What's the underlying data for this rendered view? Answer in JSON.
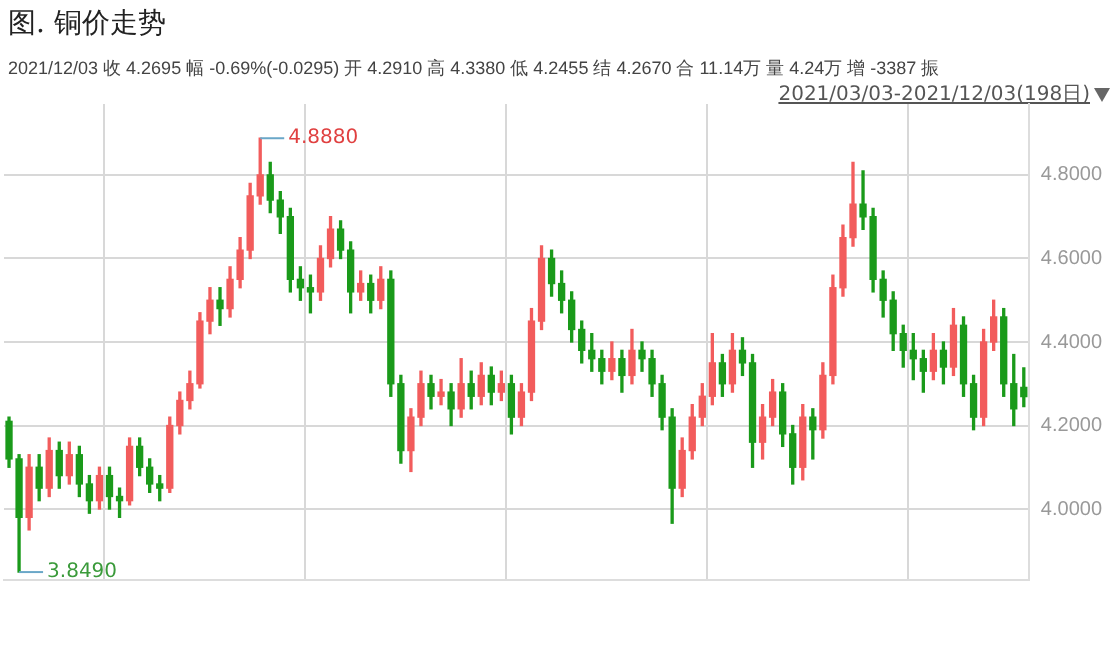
{
  "chart_data": {
    "type": "candlestick",
    "title": "图. 铜价走势",
    "annotations": [
      "2021/12/03 收 4.2695 幅 -0.69%(-0.0295) 开 4.2910 高 4.3380 低 4.2455 结 4.2670 合 11.14万 量 4.24万 增 -3387 振",
      "2021/03/03-2021/12/03(198日)",
      "4.8880",
      "3.8490"
    ],
    "categories": [
      null,
      null,
      null,
      null,
      null,
      null,
      null,
      null,
      null,
      null,
      null,
      null,
      null,
      null,
      null,
      null,
      null,
      null,
      null,
      null,
      null,
      null,
      null,
      null,
      null,
      null,
      null,
      null,
      null,
      null,
      null,
      null,
      null,
      null,
      null,
      null,
      null,
      null,
      null,
      null,
      null,
      null,
      null,
      null,
      null,
      null,
      null,
      null,
      null,
      null,
      null,
      null,
      null,
      null,
      null,
      null,
      null,
      null,
      null,
      null,
      null,
      null,
      null,
      null,
      null,
      null,
      null,
      null,
      null,
      null,
      null,
      null,
      null,
      null,
      null,
      null,
      null,
      null,
      null,
      null,
      null,
      null,
      null,
      null,
      null,
      null,
      null,
      null,
      null,
      null,
      null,
      null,
      null,
      null,
      null,
      null,
      null,
      null,
      null,
      null,
      null,
      null
    ],
    "ohlc": [
      [
        4.21,
        4.22,
        4.1,
        4.12
      ],
      [
        4.12,
        4.13,
        3.849,
        3.98
      ],
      [
        3.98,
        4.13,
        3.95,
        4.1
      ],
      [
        4.1,
        4.13,
        4.02,
        4.05
      ],
      [
        4.05,
        4.17,
        4.03,
        4.14
      ],
      [
        4.14,
        4.16,
        4.05,
        4.08
      ],
      [
        4.08,
        4.16,
        4.06,
        4.13
      ],
      [
        4.13,
        4.15,
        4.03,
        4.06
      ],
      [
        4.06,
        4.08,
        3.99,
        4.02
      ],
      [
        4.02,
        4.1,
        4.0,
        4.08
      ],
      [
        4.08,
        4.1,
        4.0,
        4.03
      ],
      [
        4.03,
        4.05,
        3.98,
        4.02
      ],
      [
        4.02,
        4.17,
        4.01,
        4.15
      ],
      [
        4.15,
        4.17,
        4.08,
        4.1
      ],
      [
        4.1,
        4.12,
        4.04,
        4.06
      ],
      [
        4.06,
        4.08,
        4.02,
        4.05
      ],
      [
        4.05,
        4.22,
        4.04,
        4.2
      ],
      [
        4.2,
        4.28,
        4.18,
        4.26
      ],
      [
        4.26,
        4.33,
        4.24,
        4.3
      ],
      [
        4.3,
        4.47,
        4.29,
        4.45
      ],
      [
        4.45,
        4.53,
        4.42,
        4.5
      ],
      [
        4.5,
        4.53,
        4.44,
        4.48
      ],
      [
        4.48,
        4.58,
        4.46,
        4.55
      ],
      [
        4.55,
        4.65,
        4.53,
        4.62
      ],
      [
        4.62,
        4.78,
        4.6,
        4.75
      ],
      [
        4.75,
        4.888,
        4.73,
        4.8
      ],
      [
        4.8,
        4.83,
        4.71,
        4.74
      ],
      [
        4.74,
        4.76,
        4.66,
        4.7
      ],
      [
        4.7,
        4.72,
        4.52,
        4.55
      ],
      [
        4.55,
        4.58,
        4.5,
        4.53
      ],
      [
        4.53,
        4.56,
        4.47,
        4.52
      ],
      [
        4.52,
        4.63,
        4.5,
        4.6
      ],
      [
        4.6,
        4.7,
        4.58,
        4.67
      ],
      [
        4.67,
        4.69,
        4.6,
        4.62
      ],
      [
        4.62,
        4.64,
        4.47,
        4.52
      ],
      [
        4.52,
        4.57,
        4.5,
        4.54
      ],
      [
        4.54,
        4.56,
        4.47,
        4.5
      ],
      [
        4.5,
        4.58,
        4.48,
        4.55
      ],
      [
        4.55,
        4.57,
        4.27,
        4.3
      ],
      [
        4.3,
        4.32,
        4.11,
        4.14
      ],
      [
        4.14,
        4.24,
        4.09,
        4.22
      ],
      [
        4.22,
        4.33,
        4.2,
        4.3
      ],
      [
        4.3,
        4.32,
        4.24,
        4.27
      ],
      [
        4.27,
        4.31,
        4.25,
        4.28
      ],
      [
        4.28,
        4.3,
        4.2,
        4.24
      ],
      [
        4.24,
        4.36,
        4.22,
        4.3
      ],
      [
        4.3,
        4.33,
        4.24,
        4.27
      ],
      [
        4.27,
        4.35,
        4.25,
        4.32
      ],
      [
        4.32,
        4.34,
        4.25,
        4.28
      ],
      [
        4.28,
        4.33,
        4.26,
        4.3
      ],
      [
        4.3,
        4.32,
        4.18,
        4.22
      ],
      [
        4.22,
        4.3,
        4.2,
        4.28
      ],
      [
        4.28,
        4.48,
        4.26,
        4.45
      ],
      [
        4.45,
        4.63,
        4.43,
        4.6
      ],
      [
        4.6,
        4.62,
        4.51,
        4.54
      ],
      [
        4.54,
        4.57,
        4.47,
        4.5
      ],
      [
        4.5,
        4.52,
        4.4,
        4.43
      ],
      [
        4.43,
        4.45,
        4.35,
        4.38
      ],
      [
        4.38,
        4.42,
        4.33,
        4.36
      ],
      [
        4.36,
        4.38,
        4.3,
        4.33
      ],
      [
        4.33,
        4.4,
        4.31,
        4.36
      ],
      [
        4.36,
        4.38,
        4.28,
        4.32
      ],
      [
        4.32,
        4.43,
        4.3,
        4.38
      ],
      [
        4.38,
        4.4,
        4.33,
        4.36
      ],
      [
        4.36,
        4.38,
        4.27,
        4.3
      ],
      [
        4.3,
        4.32,
        4.19,
        4.22
      ],
      [
        4.22,
        4.24,
        3.966,
        4.05
      ],
      [
        4.05,
        4.17,
        4.03,
        4.14
      ],
      [
        4.14,
        4.25,
        4.12,
        4.22
      ],
      [
        4.22,
        4.3,
        4.2,
        4.27
      ],
      [
        4.27,
        4.42,
        4.25,
        4.35
      ],
      [
        4.35,
        4.37,
        4.27,
        4.3
      ],
      [
        4.3,
        4.42,
        4.28,
        4.38
      ],
      [
        4.38,
        4.41,
        4.32,
        4.35
      ],
      [
        4.35,
        4.37,
        4.1,
        4.16
      ],
      [
        4.16,
        4.25,
        4.12,
        4.22
      ],
      [
        4.22,
        4.31,
        4.2,
        4.28
      ],
      [
        4.28,
        4.3,
        4.15,
        4.18
      ],
      [
        4.18,
        4.2,
        4.06,
        4.1
      ],
      [
        4.1,
        4.25,
        4.07,
        4.22
      ],
      [
        4.22,
        4.24,
        4.12,
        4.19
      ],
      [
        4.19,
        4.35,
        4.17,
        4.32
      ],
      [
        4.32,
        4.56,
        4.3,
        4.53
      ],
      [
        4.53,
        4.68,
        4.51,
        4.65
      ],
      [
        4.65,
        4.83,
        4.63,
        4.73
      ],
      [
        4.73,
        4.81,
        4.67,
        4.7
      ],
      [
        4.7,
        4.72,
        4.52,
        4.55
      ],
      [
        4.55,
        4.57,
        4.46,
        4.5
      ],
      [
        4.5,
        4.52,
        4.38,
        4.42
      ],
      [
        4.42,
        4.44,
        4.34,
        4.38
      ],
      [
        4.38,
        4.42,
        4.31,
        4.36
      ],
      [
        4.36,
        4.38,
        4.28,
        4.33
      ],
      [
        4.33,
        4.42,
        4.31,
        4.38
      ],
      [
        4.38,
        4.4,
        4.3,
        4.34
      ],
      [
        4.34,
        4.48,
        4.32,
        4.44
      ],
      [
        4.44,
        4.46,
        4.27,
        4.3
      ],
      [
        4.3,
        4.32,
        4.19,
        4.22
      ],
      [
        4.22,
        4.43,
        4.2,
        4.4
      ],
      [
        4.4,
        4.5,
        4.38,
        4.46
      ],
      [
        4.46,
        4.48,
        4.27,
        4.3
      ],
      [
        4.3,
        4.37,
        4.2,
        4.24
      ],
      [
        4.291,
        4.338,
        4.2455,
        4.2695
      ]
    ],
    "colors": [
      "#1a9a1a",
      "#1a9a1a",
      "#f25c5c",
      "#1a9a1a",
      "#f25c5c",
      "#1a9a1a",
      "#f25c5c",
      "#1a9a1a",
      "#1a9a1a",
      "#f25c5c",
      "#1a9a1a",
      "#1a9a1a",
      "#f25c5c",
      "#1a9a1a",
      "#1a9a1a",
      "#1a9a1a",
      "#f25c5c",
      "#f25c5c",
      "#f25c5c",
      "#f25c5c",
      "#f25c5c",
      "#1a9a1a",
      "#f25c5c",
      "#f25c5c",
      "#f25c5c",
      "#f25c5c",
      "#1a9a1a",
      "#1a9a1a",
      "#1a9a1a",
      "#1a9a1a",
      "#1a9a1a",
      "#f25c5c",
      "#f25c5c",
      "#1a9a1a",
      "#1a9a1a",
      "#f25c5c",
      "#1a9a1a",
      "#f25c5c",
      "#1a9a1a",
      "#1a9a1a",
      "#f25c5c",
      "#f25c5c",
      "#1a9a1a",
      "#f25c5c",
      "#1a9a1a",
      "#f25c5c",
      "#1a9a1a",
      "#f25c5c",
      "#1a9a1a",
      "#f25c5c",
      "#1a9a1a",
      "#f25c5c",
      "#f25c5c",
      "#f25c5c",
      "#1a9a1a",
      "#1a9a1a",
      "#1a9a1a",
      "#1a9a1a",
      "#1a9a1a",
      "#1a9a1a",
      "#f25c5c",
      "#1a9a1a",
      "#f25c5c",
      "#1a9a1a",
      "#1a9a1a",
      "#1a9a1a",
      "#1a9a1a",
      "#f25c5c",
      "#f25c5c",
      "#f25c5c",
      "#f25c5c",
      "#1a9a1a",
      "#f25c5c",
      "#1a9a1a",
      "#1a9a1a",
      "#f25c5c",
      "#f25c5c",
      "#1a9a1a",
      "#1a9a1a",
      "#f25c5c",
      "#1a9a1a",
      "#f25c5c",
      "#f25c5c",
      "#f25c5c",
      "#f25c5c",
      "#1a9a1a",
      "#1a9a1a",
      "#1a9a1a",
      "#1a9a1a",
      "#1a9a1a",
      "#1a9a1a",
      "#1a9a1a",
      "#f25c5c",
      "#1a9a1a",
      "#f25c5c",
      "#1a9a1a",
      "#1a9a1a",
      "#f25c5c",
      "#f25c5c",
      "#1a9a1a",
      "#1a9a1a",
      "#1a9a1a"
    ],
    "ylim": [
      3.83,
      4.97
    ],
    "yticks": [
      {
        "value": 4,
        "label": "4.0000"
      },
      {
        "value": 4.2,
        "label": "4.2000"
      },
      {
        "value": 4.4,
        "label": "4.4000"
      },
      {
        "value": 4.6,
        "label": "4.6000"
      },
      {
        "value": 4.8,
        "label": "4.8000"
      }
    ],
    "grid": true,
    "legend": false
  }
}
